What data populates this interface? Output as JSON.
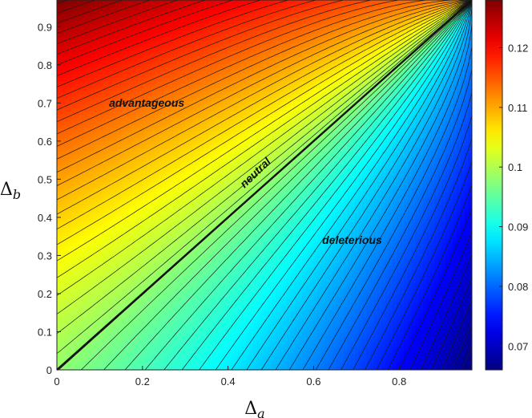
{
  "chart_data": {
    "type": "heatmap",
    "subtype": "filled contour with contour lines",
    "title": "",
    "xlabel": {
      "symbol": "Δ",
      "subscript": "a"
    },
    "ylabel": {
      "symbol": "Δ",
      "subscript": "b"
    },
    "xlim": [
      0,
      0.97
    ],
    "ylim": [
      0,
      0.97
    ],
    "xticks": [
      "0",
      "0.2",
      "0.4",
      "0.6",
      "0.8"
    ],
    "xtick_values": [
      0,
      0.2,
      0.4,
      0.6,
      0.8
    ],
    "yticks": [
      "0",
      "0.1",
      "0.2",
      "0.3",
      "0.4",
      "0.5",
      "0.6",
      "0.7",
      "0.8",
      "0.9"
    ],
    "ytick_values": [
      0,
      0.1,
      0.2,
      0.3,
      0.4,
      0.5,
      0.6,
      0.7,
      0.8,
      0.9
    ],
    "colorbar": {
      "range": [
        0.066,
        0.128
      ],
      "ticks": [
        "0.07",
        "0.08",
        "0.09",
        "0.1",
        "0.11",
        "0.12"
      ],
      "tick_values": [
        0.07,
        0.08,
        0.09,
        0.1,
        0.11,
        0.12
      ],
      "colormap": "jet"
    },
    "neutral_line": {
      "x": [
        0,
        0.97
      ],
      "y": [
        0,
        0.97
      ]
    },
    "annotations": [
      {
        "text": "advantageous",
        "x": 0.21,
        "y": 0.69,
        "rotation": 0
      },
      {
        "text": "neutral",
        "x": 0.47,
        "y": 0.51,
        "rotation": -44
      },
      {
        "text": "deleterious",
        "x": 0.69,
        "y": 0.33,
        "rotation": 0
      }
    ],
    "surface_samples": [
      {
        "x": 0,
        "y": 0,
        "value": 0.098
      },
      {
        "x": 0,
        "y": 0.97,
        "value": 0.128
      },
      {
        "x": 0.97,
        "y": 0,
        "value": 0.066
      },
      {
        "x": 0.97,
        "y": 0.97,
        "value": 0.098
      }
    ]
  }
}
